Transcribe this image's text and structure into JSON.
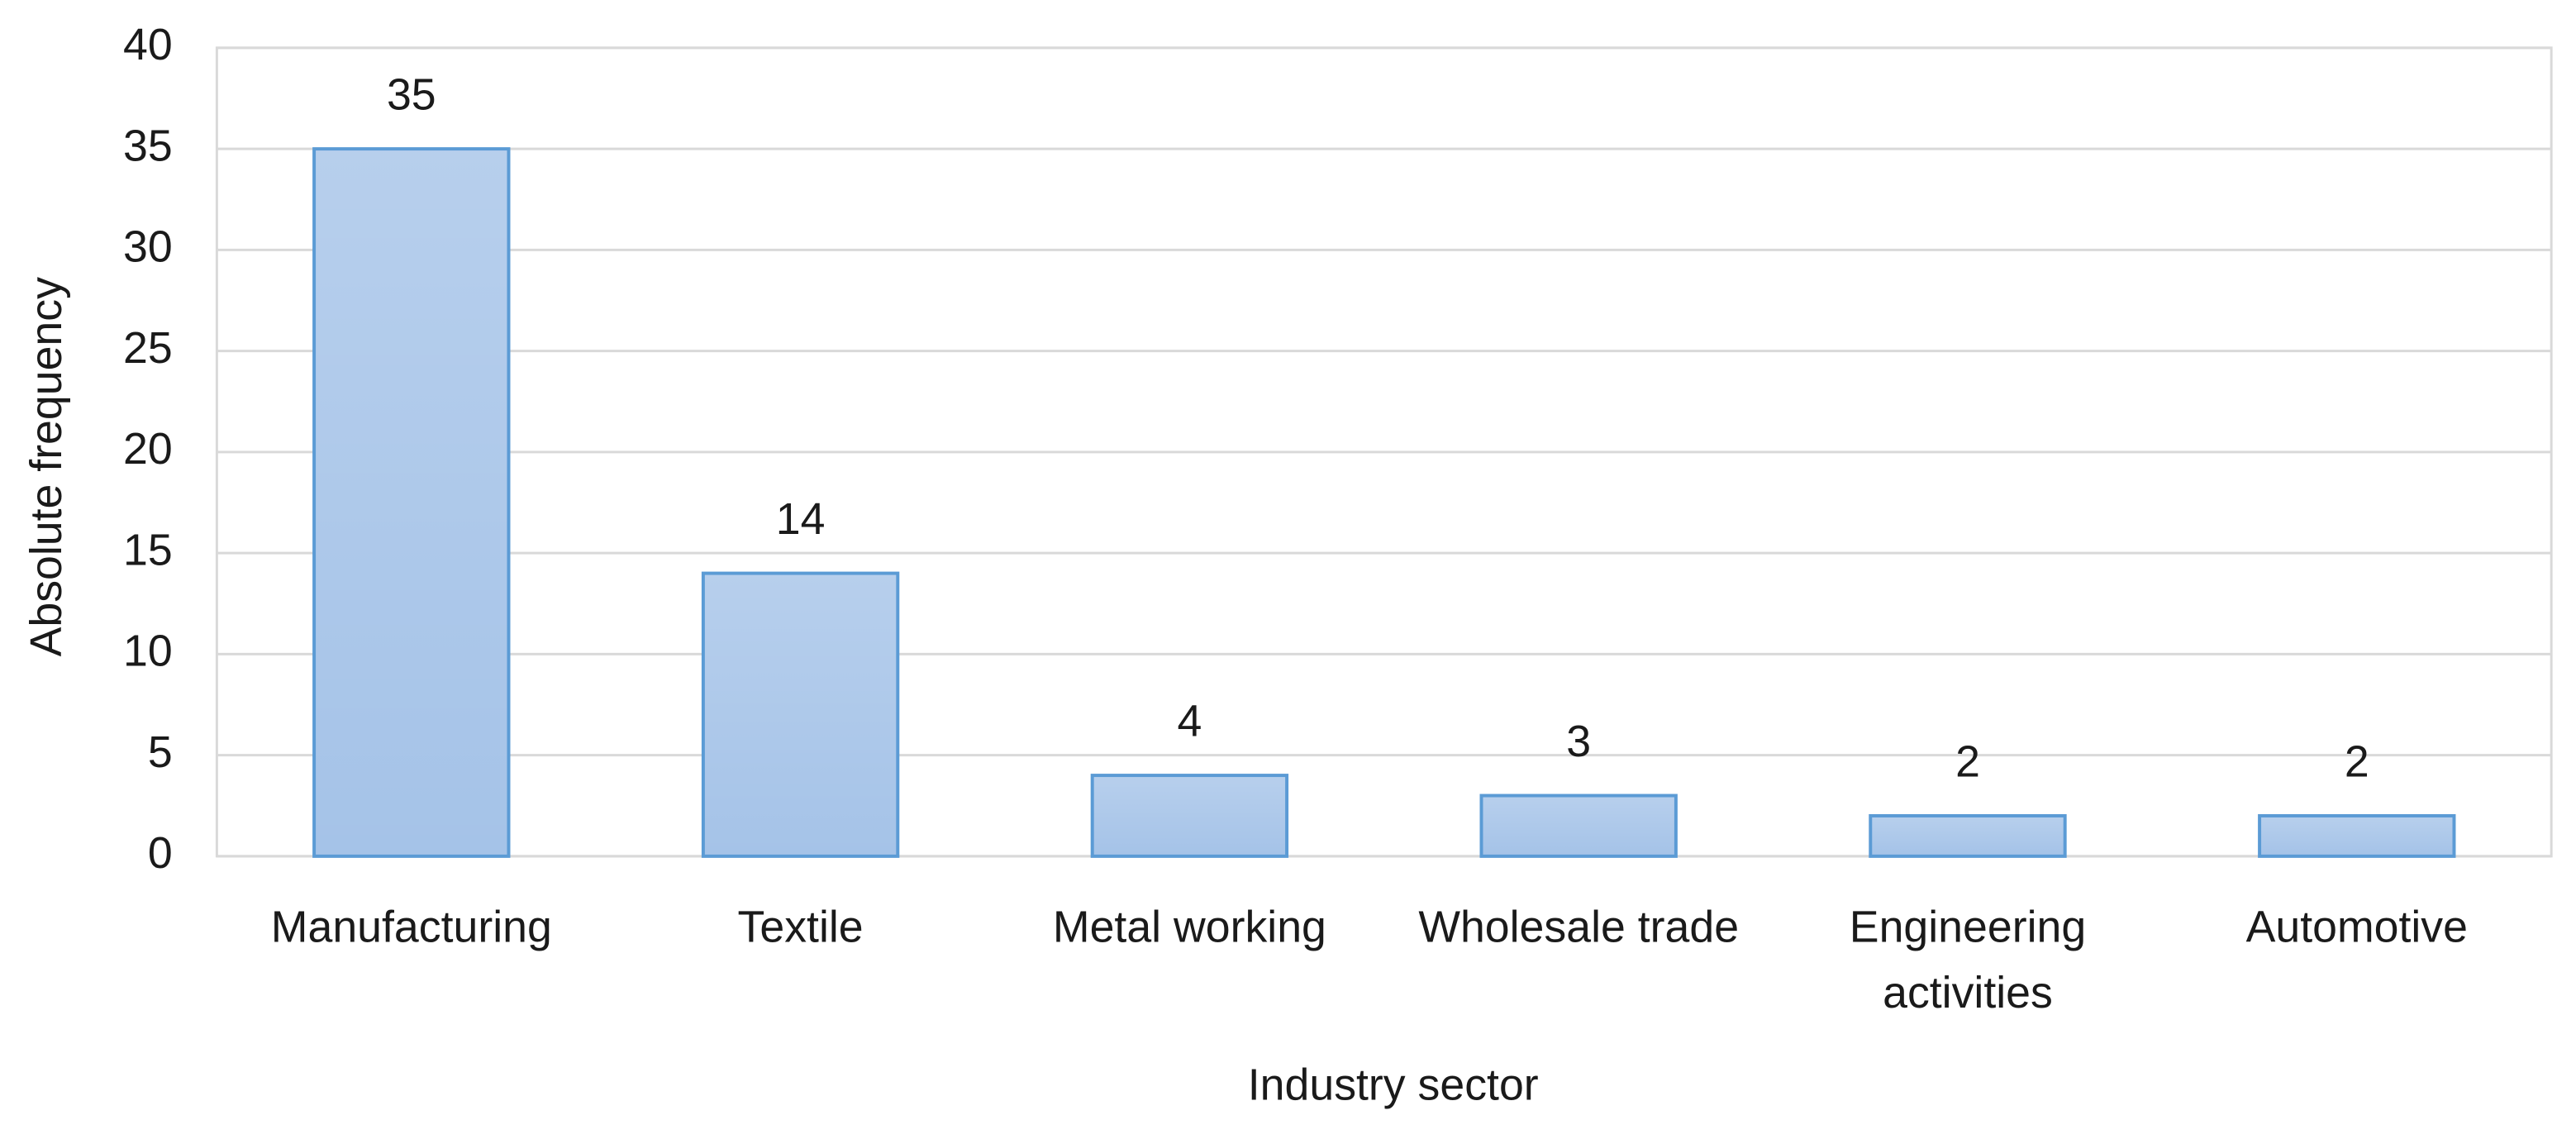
{
  "chart_data": {
    "type": "bar",
    "x_label": "Industry sector",
    "y_label": "Absolute frequency",
    "categories": [
      "Manufacturing",
      "Textile",
      "Metal working",
      "Wholesale trade",
      "Engineering activities",
      "Automotive"
    ],
    "values": [
      35,
      14,
      4,
      3,
      2,
      2
    ],
    "color": "#a5c3e8",
    "edge_color": "#5b9bd5",
    "ylim": [
      0,
      40
    ],
    "yticks": [
      0,
      5,
      10,
      15,
      20,
      25,
      30,
      35,
      40
    ],
    "grid": true,
    "data_labels": true
  }
}
